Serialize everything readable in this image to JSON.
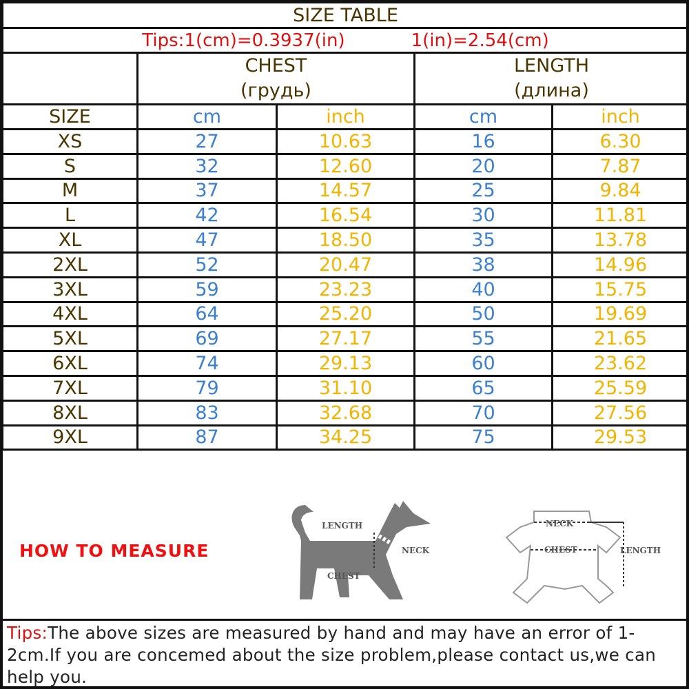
{
  "title": "SIZE TABLE",
  "tips": {
    "cm_to_in": "Tips:1(cm)=0.3937(in)",
    "in_to_cm": "1(in)=2.54(cm)"
  },
  "headers": {
    "chest": "CHEST",
    "chest_ru": "(грудь)",
    "length": "LENGTH",
    "length_ru": "(длина)",
    "size": "SIZE",
    "cm": "cm",
    "inch": "inch"
  },
  "rows": [
    {
      "size": "XS",
      "chest_cm": "27",
      "chest_in": "10.63",
      "length_cm": "16",
      "length_in": "6.30"
    },
    {
      "size": "S",
      "chest_cm": "32",
      "chest_in": "12.60",
      "length_cm": "20",
      "length_in": "7.87"
    },
    {
      "size": "M",
      "chest_cm": "37",
      "chest_in": "14.57",
      "length_cm": "25",
      "length_in": "9.84"
    },
    {
      "size": "L",
      "chest_cm": "42",
      "chest_in": "16.54",
      "length_cm": "30",
      "length_in": "11.81"
    },
    {
      "size": "XL",
      "chest_cm": "47",
      "chest_in": "18.50",
      "length_cm": "35",
      "length_in": "13.78"
    },
    {
      "size": "2XL",
      "chest_cm": "52",
      "chest_in": "20.47",
      "length_cm": "38",
      "length_in": "14.96"
    },
    {
      "size": "3XL",
      "chest_cm": "59",
      "chest_in": "23.23",
      "length_cm": "40",
      "length_in": "15.75"
    },
    {
      "size": "4XL",
      "chest_cm": "64",
      "chest_in": "25.20",
      "length_cm": "50",
      "length_in": "19.69"
    },
    {
      "size": "5XL",
      "chest_cm": "69",
      "chest_in": "27.17",
      "length_cm": "55",
      "length_in": "21.65"
    },
    {
      "size": "6XL",
      "chest_cm": "74",
      "chest_in": "29.13",
      "length_cm": "60",
      "length_in": "23.62"
    },
    {
      "size": "7XL",
      "chest_cm": "79",
      "chest_in": "31.10",
      "length_cm": "65",
      "length_in": "25.59"
    },
    {
      "size": "8XL",
      "chest_cm": "83",
      "chest_in": "32.68",
      "length_cm": "70",
      "length_in": "27.56"
    },
    {
      "size": "9XL",
      "chest_cm": "87",
      "chest_in": "34.25",
      "length_cm": "75",
      "length_in": "29.53"
    }
  ],
  "how_to_measure": "HOW TO MEASURE",
  "diagram_labels": {
    "length": "LENGTH",
    "neck": "NECK",
    "chest": "CHEST"
  },
  "note": {
    "prefix": "Tips:",
    "text": "The above sizes are measured by hand and may have an error of 1-2cm.If you are concemed about the size problem,please contact us,we can help you."
  },
  "colors": {
    "cm": "#3b7fd0",
    "inch": "#f2b400",
    "tips": "#e01010",
    "text": "#4a3500"
  }
}
